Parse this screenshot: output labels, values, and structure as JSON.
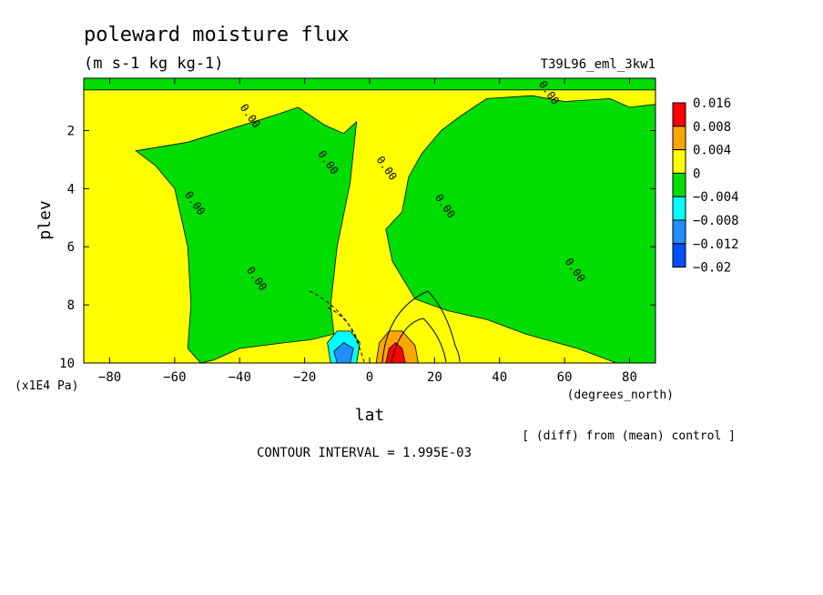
{
  "chart_data": {
    "type": "heatmap",
    "title": "poleward moisture flux",
    "subtitle": "(m s-1 kg kg-1)",
    "experiment": "T39L96_eml_3kw1",
    "xlabel": "lat",
    "x_units": "(degrees_north)",
    "ylabel": "plev",
    "y_units": "(x1E4 Pa)",
    "xlim": [
      -88,
      88
    ],
    "ylim": [
      10,
      0.2
    ],
    "x_ticks": [
      -80,
      -60,
      -40,
      -20,
      0,
      20,
      40,
      60,
      80
    ],
    "x_tick_labels": [
      "−80",
      "−60",
      "−40",
      "−20",
      "0",
      "20",
      "40",
      "60",
      "80"
    ],
    "y_ticks": [
      2,
      4,
      6,
      8,
      10
    ],
    "y_tick_labels": [
      "2",
      "4",
      "6",
      "8",
      "10"
    ],
    "colorbar": {
      "labels": [
        "0.016",
        "0.008",
        "0.004",
        "0",
        "−0.004",
        "−0.008",
        "−0.012",
        "−0.02"
      ],
      "colors": [
        "#ff0000",
        "#ffa500",
        "#ffff00",
        "#00dd00",
        "#00ffff",
        "#1e90ff",
        "#0050ff"
      ]
    },
    "contour_labels": [
      "0.00",
      "0.00",
      "0.00",
      "0.00",
      "0.00",
      "0.00",
      "0.00",
      "0.00"
    ],
    "footer_left": "CONTOUR INTERVAL = 1.995E-03",
    "footer_right": "[ (diff) from (mean) control ]",
    "regions": [
      {
        "name": "green-top-band",
        "sign": "negative",
        "points": [
          [
            -88,
            0.2
          ],
          [
            88,
            0.2
          ],
          [
            88,
            0.6
          ],
          [
            -88,
            0.6
          ]
        ]
      },
      {
        "name": "green-southern-lobe",
        "sign": "negative",
        "points": [
          [
            -72,
            2.7
          ],
          [
            -56,
            2.4
          ],
          [
            -30,
            1.5
          ],
          [
            -22,
            1.2
          ],
          [
            -14,
            1.8
          ],
          [
            -8,
            2.1
          ],
          [
            -4,
            1.7
          ],
          [
            -6,
            3.8
          ],
          [
            -10,
            6
          ],
          [
            -12,
            8
          ],
          [
            -11,
            9
          ],
          [
            -18,
            9.2
          ],
          [
            -26,
            9.3
          ],
          [
            -40,
            9.5
          ],
          [
            -48,
            9.9
          ],
          [
            -52,
            10
          ],
          [
            -56,
            9.5
          ],
          [
            -55,
            8
          ],
          [
            -56,
            6
          ],
          [
            -60,
            4
          ],
          [
            -66,
            3.2
          ]
        ]
      },
      {
        "name": "green-northern-lobe",
        "sign": "negative",
        "points": [
          [
            10,
            4.8
          ],
          [
            12,
            3.6
          ],
          [
            16,
            2.8
          ],
          [
            22,
            2
          ],
          [
            28,
            1.5
          ],
          [
            36,
            0.9
          ],
          [
            50,
            0.8
          ],
          [
            60,
            1.0
          ],
          [
            74,
            0.9
          ],
          [
            80,
            1.2
          ],
          [
            88,
            1.1
          ],
          [
            88,
            10
          ],
          [
            76,
            10
          ],
          [
            64,
            9.5
          ],
          [
            48,
            9
          ],
          [
            36,
            8.5
          ],
          [
            24,
            8.2
          ],
          [
            14,
            7.8
          ],
          [
            7,
            6.5
          ],
          [
            5,
            5.4
          ]
        ]
      },
      {
        "name": "cyan-core",
        "sign": "negative",
        "points": [
          [
            -13,
            9.3
          ],
          [
            -10,
            8.9
          ],
          [
            -6,
            8.9
          ],
          [
            -3,
            9.3
          ],
          [
            -4,
            10
          ],
          [
            -12,
            10
          ]
        ]
      },
      {
        "name": "blue-core",
        "sign": "negative",
        "points": [
          [
            -11,
            9.6
          ],
          [
            -8,
            9.3
          ],
          [
            -5,
            9.5
          ],
          [
            -6,
            10
          ],
          [
            -10,
            10
          ]
        ]
      },
      {
        "name": "orange-core",
        "sign": "positive",
        "points": [
          [
            2,
            10
          ],
          [
            3,
            9.3
          ],
          [
            6,
            8.9
          ],
          [
            10,
            8.9
          ],
          [
            14,
            9.4
          ],
          [
            15,
            10
          ]
        ]
      },
      {
        "name": "red-core",
        "sign": "positive",
        "points": [
          [
            5,
            10
          ],
          [
            6,
            9.5
          ],
          [
            8,
            9.3
          ],
          [
            10,
            9.5
          ],
          [
            11,
            10
          ]
        ]
      }
    ]
  }
}
